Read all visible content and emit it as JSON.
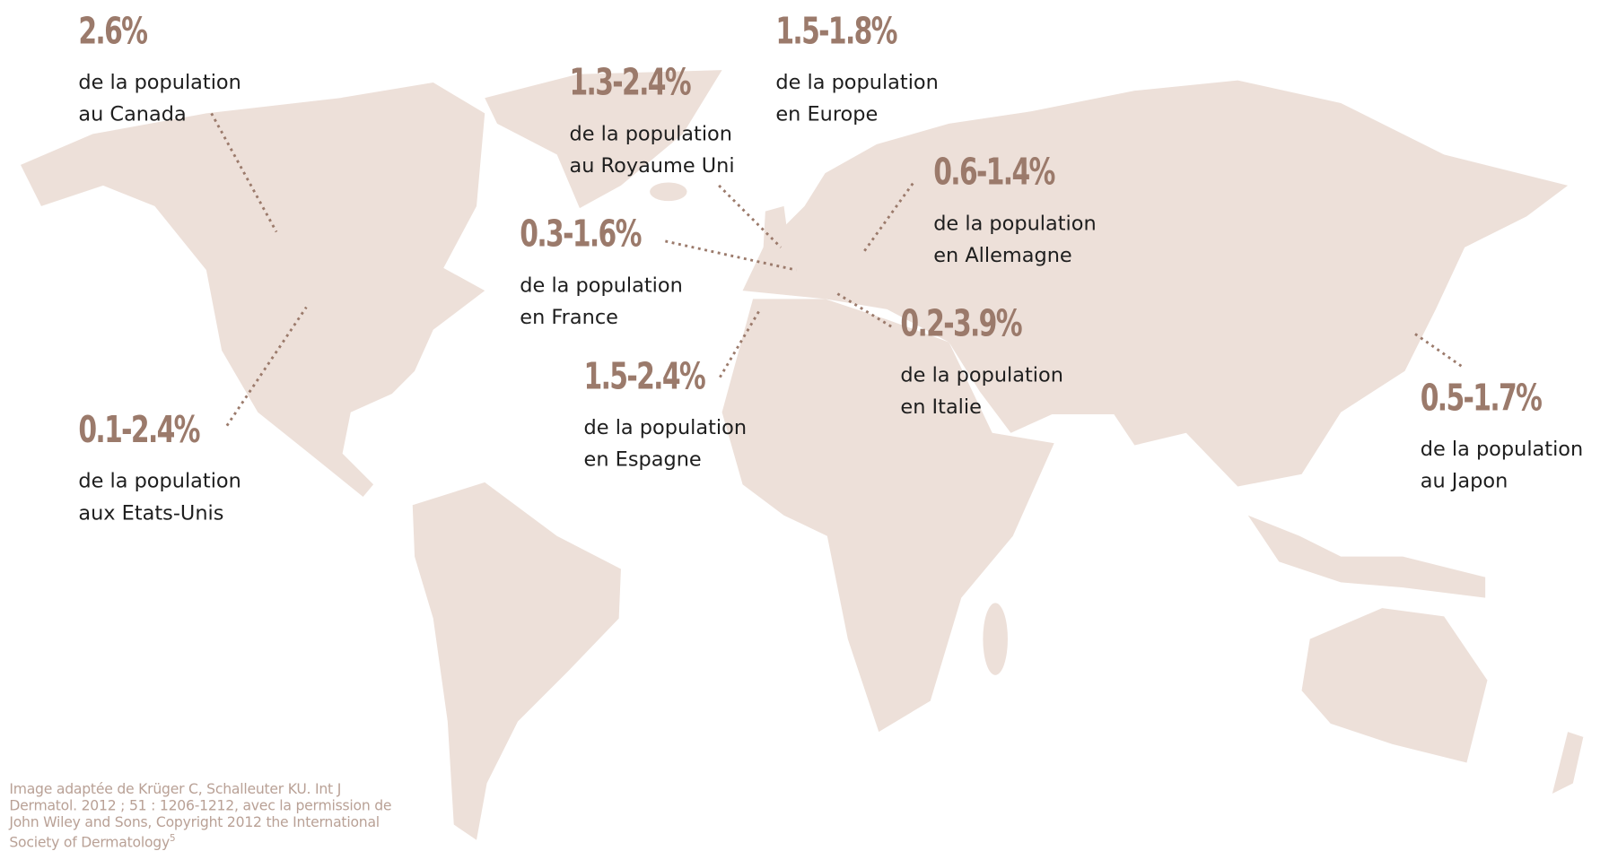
{
  "colors": {
    "land": "#ede0d9",
    "percentage": "#9b7a6b",
    "text": "#1e1e1e",
    "leader": "#9b7a6b",
    "credit": "#b9a196"
  },
  "labels": {
    "canada": {
      "pct": "2.6%",
      "line1": "de la population",
      "line2": "au Canada"
    },
    "usa": {
      "pct": "0.1-2.4%",
      "line1": "de la population",
      "line2": "aux Etats-Unis"
    },
    "uk": {
      "pct": "1.3-2.4%",
      "line1": "de la population",
      "line2": "au Royaume Uni"
    },
    "europe": {
      "pct": "1.5-1.8%",
      "line1": "de la population",
      "line2": "en Europe"
    },
    "france": {
      "pct": "0.3-1.6%",
      "line1": "de la population",
      "line2": "en France"
    },
    "germany": {
      "pct": "0.6-1.4%",
      "line1": "de la population",
      "line2": "en Allemagne"
    },
    "italy": {
      "pct": "0.2-3.9%",
      "line1": "de la population",
      "line2": "en Italie"
    },
    "spain": {
      "pct": "1.5-2.4%",
      "line1": "de la population",
      "line2": "en Espagne"
    },
    "japan": {
      "pct": "0.5-1.7%",
      "line1": "de la population",
      "line2": "au Japon"
    }
  },
  "credit": {
    "text": "Image adaptée de Krüger C, Schalleuter KU. Int J Dermatol. 2012 ; 51 : 1206-1212, avec la permission de John Wiley and Sons, Copyright 2012 the International Society of Dermatology",
    "footnote": "5"
  }
}
